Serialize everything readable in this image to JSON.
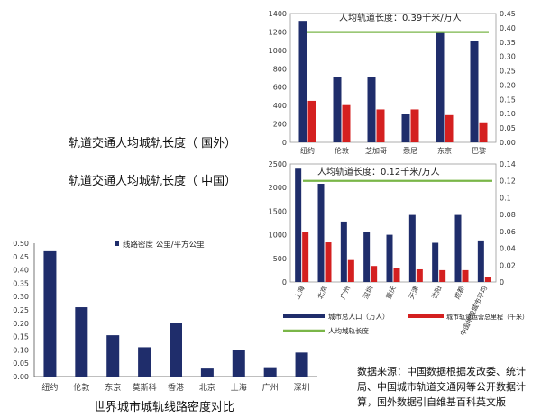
{
  "captions": {
    "foreign": "轨道交通人均城轨长度（ 国外）",
    "china": "轨道交通人均城轨长度（ 中国）",
    "bottom_title": "世界城市城轨线路密度对比"
  },
  "source_note": [
    "数据来源：中国数据根据发改委、统计",
    "局、中国城市轨道交通网等公开数据计",
    "算，国外数据引自维基百科英文版"
  ],
  "colors": {
    "population": "#1f2d6b",
    "length": "#d42020",
    "reference": "#7ab648",
    "density": "#1f2d6b"
  },
  "chart_data": [
    {
      "type": "bar",
      "categories": [
        "纽约",
        "伦敦",
        "芝加哥",
        "悉尼",
        "东京",
        "巴黎"
      ],
      "series": [
        {
          "name": "",
          "axis": "left",
          "values": [
            1320,
            710,
            710,
            310,
            1190,
            1100
          ]
        },
        {
          "name": "",
          "axis": "right",
          "values": [
            0.145,
            0.13,
            0.115,
            0.115,
            0.095,
            0.07
          ]
        }
      ],
      "reference_line": {
        "axis": "right",
        "value": 0.385,
        "label": "人均轨道长度：0.39千米/万人"
      },
      "ylim_left": [
        0,
        1400
      ],
      "yticks_left": [
        0,
        200,
        400,
        600,
        800,
        1000,
        1200,
        1400
      ],
      "ylim_right": [
        0,
        0.45
      ],
      "yticks_right": [
        "0.00",
        "0.05",
        "0.10",
        "0.15",
        "0.20",
        "0.25",
        "0.30",
        "0.35",
        "0.40",
        "0.45"
      ]
    },
    {
      "type": "bar",
      "categories": [
        "上海",
        "北京",
        "广州",
        "深圳",
        "重庆",
        "天津",
        "沈阳",
        "成都",
        "中国地级城市平均"
      ],
      "series": [
        {
          "name": "城市总人口（万人）",
          "axis": "left",
          "values": [
            2400,
            2080,
            1280,
            1060,
            1000,
            1420,
            830,
            1420,
            880
          ]
        },
        {
          "name": "城市轨道运营总里程（千米）",
          "axis": "right",
          "values": [
            0.059,
            0.047,
            0.026,
            0.019,
            0.017,
            0.015,
            0.014,
            0.014,
            0.006
          ]
        }
      ],
      "reference_line": {
        "axis": "right",
        "value": 0.12,
        "label": "人均轨道长度：0.12千米/万人"
      },
      "reference_legend": "人均城轨长度",
      "ylim_left": [
        0,
        2500
      ],
      "yticks_left": [
        0,
        500,
        1000,
        1500,
        2000,
        2500
      ],
      "ylim_right": [
        0,
        0.14
      ],
      "yticks_right": [
        "0",
        "0.02",
        "0.04",
        "0.06",
        "0.08",
        "0.1",
        "0.12",
        "0.14"
      ]
    },
    {
      "type": "bar",
      "categories": [
        "纽约",
        "伦敦",
        "东京",
        "莫斯科",
        "香港",
        "北京",
        "上海",
        "广州",
        "深圳"
      ],
      "series": [
        {
          "name": "线路密度 公里/平方公里",
          "values": [
            0.47,
            0.26,
            0.155,
            0.11,
            0.2,
            0.03,
            0.1,
            0.035,
            0.09
          ]
        }
      ],
      "ylim": [
        0,
        0.5
      ],
      "yticks": [
        "0.00",
        "0.05",
        "0.10",
        "0.15",
        "0.20",
        "0.25",
        "0.30",
        "0.35",
        "0.40",
        "0.45",
        "0.50"
      ]
    }
  ]
}
